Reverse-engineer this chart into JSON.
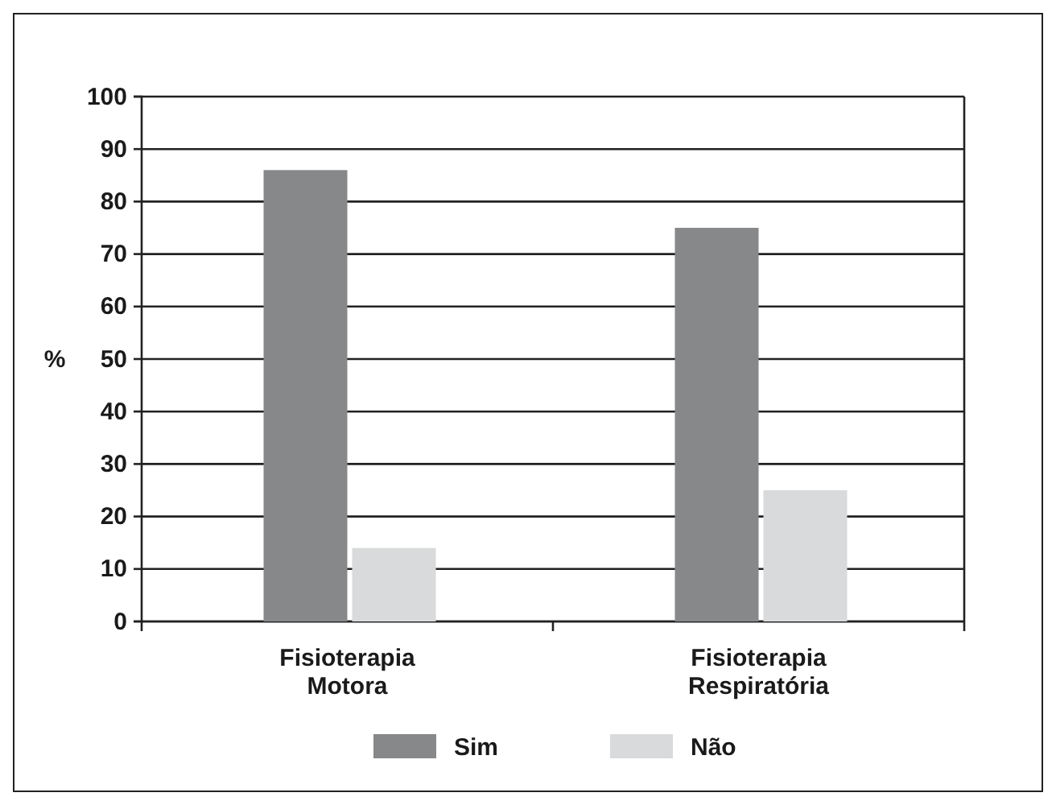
{
  "chart_data": {
    "type": "bar",
    "ylabel": "%",
    "categories": [
      "Fisioterapia Motora",
      "Fisioterapia Respiratória"
    ],
    "series": [
      {
        "name": "Sim",
        "color": "#87888a",
        "values": [
          86,
          75
        ]
      },
      {
        "name": "Não",
        "color": "#d9dadb",
        "values": [
          14,
          25
        ]
      }
    ],
    "ylim": [
      0,
      100
    ],
    "yticks": [
      0,
      10,
      20,
      30,
      40,
      50,
      60,
      70,
      80,
      90,
      100
    ],
    "grid": "y",
    "legend": "bottom"
  }
}
